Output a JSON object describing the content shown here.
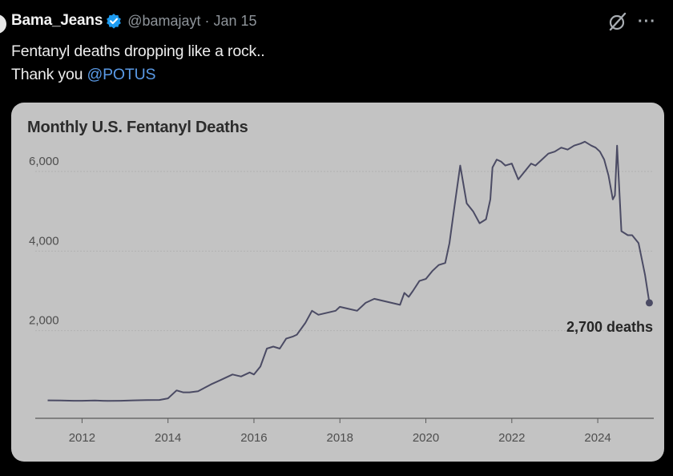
{
  "tweet": {
    "display_name": "Bama_Jeans",
    "handle": "@bamajayt",
    "separator": "·",
    "date": "Jan 15",
    "text_line1": "Fentanyl deaths dropping like a rock..",
    "text_line2_prefix": "Thank you ",
    "mention": "@POTUS",
    "more_label": "···",
    "colors": {
      "background": "#000000",
      "mention": "#5a9ae6",
      "verified": "#1d9bf0",
      "card": "#c3c3c3",
      "line": "#4b4b64"
    },
    "icons": [
      "verified-badge-icon",
      "grok-icon",
      "more-options-icon"
    ]
  },
  "chart_data": {
    "type": "line",
    "title": "Monthly U.S. Fentanyl Deaths",
    "xlabel": "",
    "ylabel": "",
    "xlim": [
      2011.2,
      2025.35
    ],
    "ylim": [
      0,
      6900
    ],
    "yticks": [
      2000,
      4000,
      6000
    ],
    "ytick_labels": [
      "2,000",
      "4,000",
      "6,000"
    ],
    "xticks": [
      2012,
      2014,
      2016,
      2018,
      2020,
      2022,
      2024
    ],
    "xtick_labels": [
      "2012",
      "2014",
      "2016",
      "2018",
      "2020",
      "2022",
      "2024"
    ],
    "grid": "horizontal",
    "legend": "none",
    "annotation": "2,700 deaths",
    "series": [
      {
        "x": [
          2011.2,
          2011.5,
          2011.8,
          2012.0,
          2012.3,
          2012.6,
          2012.9,
          2013.2,
          2013.5,
          2013.8,
          2014.0,
          2014.2,
          2014.35,
          2014.5,
          2014.7,
          2015.0,
          2015.2,
          2015.5,
          2015.7,
          2015.9,
          2016.0,
          2016.15,
          2016.3,
          2016.45,
          2016.6,
          2016.75,
          2016.9,
          2017.0,
          2017.2,
          2017.35,
          2017.5,
          2017.7,
          2017.9,
          2018.0,
          2018.2,
          2018.4,
          2018.6,
          2018.8,
          2019.0,
          2019.2,
          2019.4,
          2019.5,
          2019.6,
          2019.7,
          2019.85,
          2020.0,
          2020.15,
          2020.3,
          2020.45,
          2020.55,
          2020.65,
          2020.8,
          2020.95,
          2021.1,
          2021.25,
          2021.4,
          2021.5,
          2021.55,
          2021.65,
          2021.75,
          2021.85,
          2022.0,
          2022.15,
          2022.3,
          2022.45,
          2022.55,
          2022.7,
          2022.85,
          2023.0,
          2023.15,
          2023.3,
          2023.45,
          2023.6,
          2023.7,
          2023.85,
          2023.95,
          2024.05,
          2024.15,
          2024.25,
          2024.35,
          2024.4,
          2024.45,
          2024.55,
          2024.7,
          2024.8,
          2024.95,
          2025.1,
          2025.2
        ],
        "values": [
          250,
          245,
          240,
          240,
          245,
          235,
          240,
          250,
          255,
          260,
          300,
          500,
          450,
          450,
          480,
          650,
          750,
          900,
          850,
          950,
          900,
          1100,
          1550,
          1600,
          1550,
          1800,
          1850,
          1900,
          2200,
          2500,
          2400,
          2450,
          2500,
          2600,
          2550,
          2500,
          2700,
          2800,
          2750,
          2700,
          2650,
          2950,
          2850,
          3000,
          3250,
          3300,
          3500,
          3650,
          3700,
          4200,
          5000,
          6150,
          5200,
          5000,
          4700,
          4800,
          5300,
          6100,
          6300,
          6250,
          6150,
          6200,
          5800,
          6000,
          6200,
          6150,
          6300,
          6450,
          6500,
          6600,
          6550,
          6650,
          6700,
          6750,
          6650,
          6600,
          6500,
          6300,
          5900,
          5300,
          5400,
          6650,
          4500,
          4400,
          4400,
          4200,
          3400,
          2700
        ]
      }
    ]
  }
}
